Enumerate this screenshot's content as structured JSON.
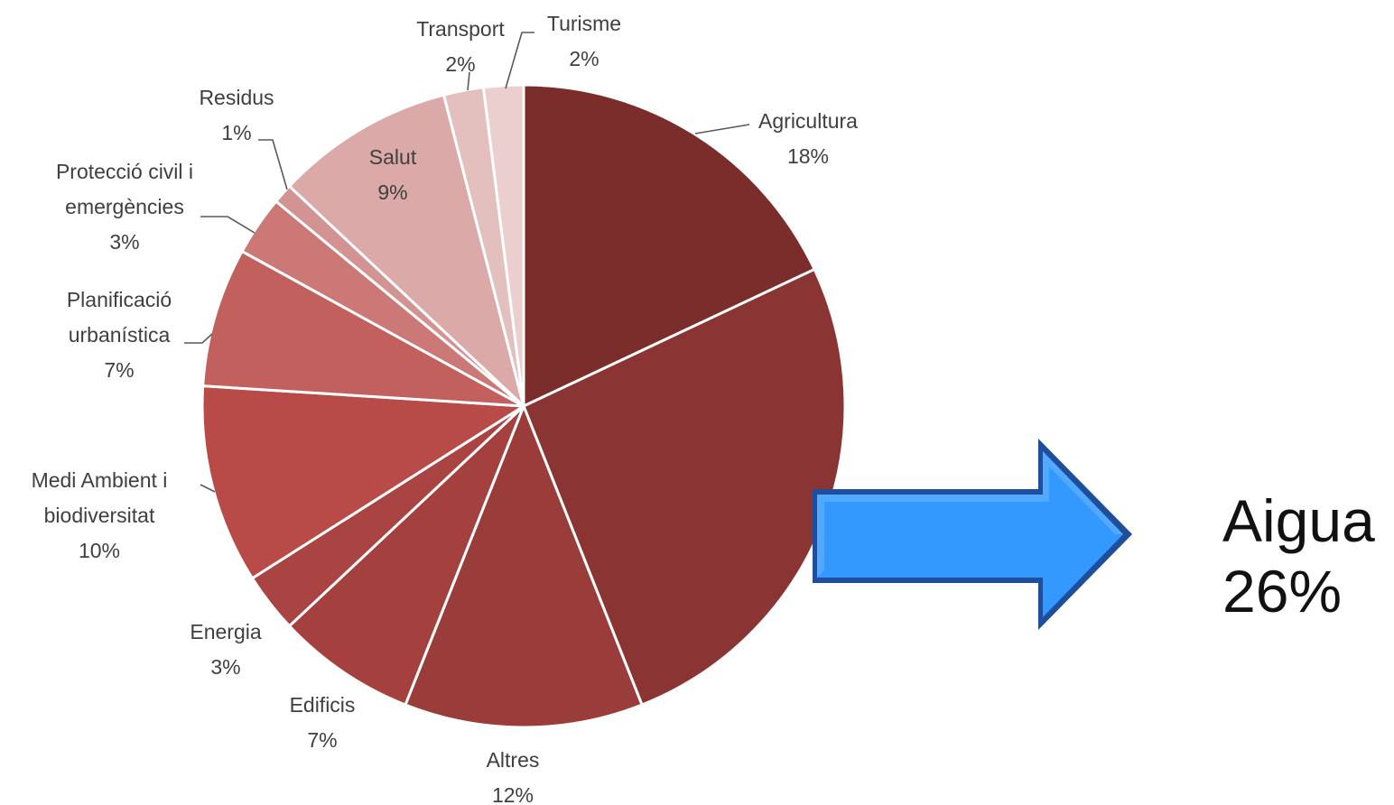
{
  "chart_data": {
    "type": "pie",
    "title": "",
    "slices": [
      {
        "label_lines": [
          "Agricultura",
          "18%"
        ],
        "value": 18,
        "color": "#7b2d2b"
      },
      {
        "label_lines": [],
        "value": 26,
        "color": "#8a3433"
      },
      {
        "label_lines": [
          "Altres",
          "12%"
        ],
        "value": 12,
        "color": "#9a3c3a"
      },
      {
        "label_lines": [
          "Edificis",
          "7%"
        ],
        "value": 7,
        "color": "#a4403e"
      },
      {
        "label_lines": [
          "Energia",
          "3%"
        ],
        "value": 3,
        "color": "#aa4442"
      },
      {
        "label_lines": [
          "Medi Ambient i",
          "biodiversitat",
          "10%"
        ],
        "value": 10,
        "color": "#b84a47"
      },
      {
        "label_lines": [
          "Planificació",
          "urbanística",
          "7%"
        ],
        "value": 7,
        "color": "#c2605d"
      },
      {
        "label_lines": [
          "Protecció civil i",
          "emergències",
          "3%"
        ],
        "value": 3,
        "color": "#cb7876"
      },
      {
        "label_lines": [
          "Residus",
          "1%"
        ],
        "value": 1,
        "color": "#d49393"
      },
      {
        "label_lines": [
          "Salut",
          "9%"
        ],
        "value": 9,
        "color": "#dba9a8"
      },
      {
        "label_lines": [
          "Transport",
          "2%"
        ],
        "value": 2,
        "color": "#e3bfbe"
      },
      {
        "label_lines": [
          "Turisme",
          "2%"
        ],
        "value": 2,
        "color": "#ebcfce"
      }
    ]
  },
  "callout": {
    "label": "Aigua",
    "value": "26%",
    "arrow_color": "#3399ff",
    "arrow_edge_color": "#1f4e9c"
  }
}
